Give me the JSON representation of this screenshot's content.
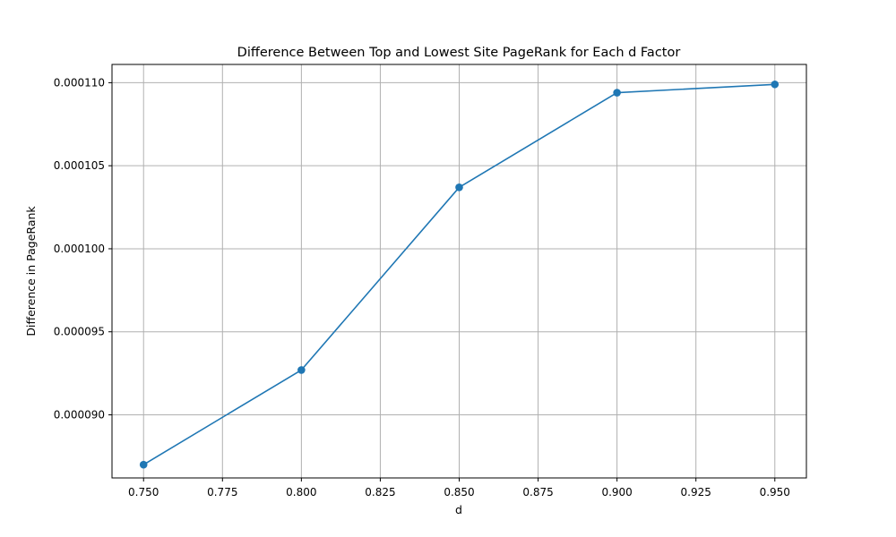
{
  "chart_data": {
    "type": "line",
    "title": "Difference Between Top and Lowest Site PageRank for Each d Factor",
    "xlabel": "d",
    "ylabel": "Difference in PageRank",
    "x": [
      0.75,
      0.8,
      0.85,
      0.9,
      0.95
    ],
    "series": [
      {
        "values": [
          8.7e-05,
          9.27e-05,
          0.0001037,
          0.0001094,
          0.0001099
        ],
        "color": "#1f77b4",
        "marker": "circle"
      }
    ],
    "xlim": [
      0.74,
      0.96
    ],
    "ylim": [
      8.62e-05,
      0.0001111
    ],
    "xticks": [
      0.75,
      0.775,
      0.8,
      0.825,
      0.85,
      0.875,
      0.9,
      0.925,
      0.95
    ],
    "xtick_labels": [
      "0.750",
      "0.775",
      "0.800",
      "0.825",
      "0.850",
      "0.875",
      "0.900",
      "0.925",
      "0.950"
    ],
    "yticks": [
      9e-05,
      9.5e-05,
      0.0001,
      0.000105,
      0.00011
    ],
    "ytick_labels": [
      "0.000090",
      "0.000095",
      "0.000100",
      "0.000105",
      "0.000110"
    ],
    "grid": true
  }
}
